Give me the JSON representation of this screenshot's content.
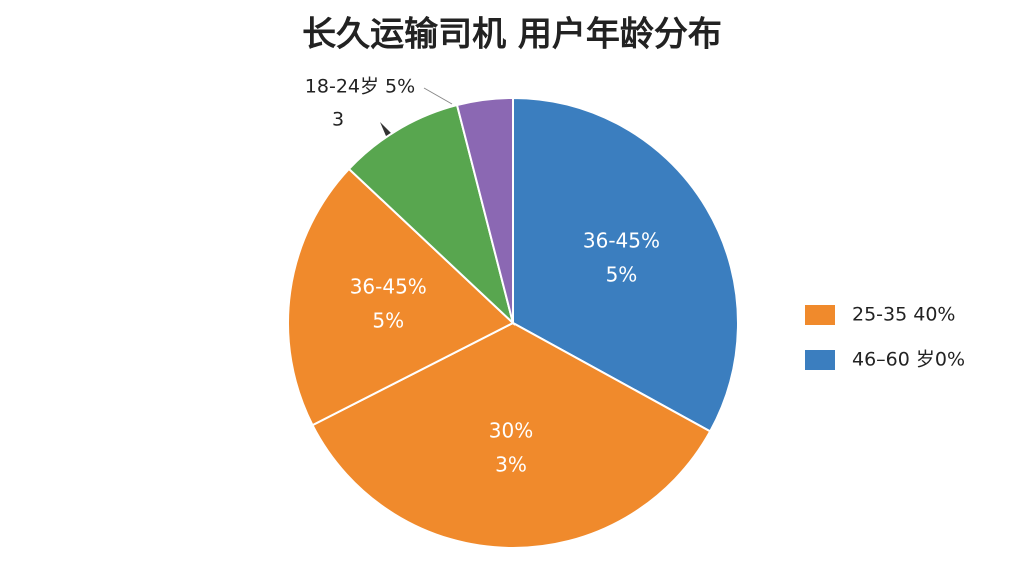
{
  "chart_data": {
    "type": "pie",
    "title": "长久运输司机 用户年龄分布",
    "values": [
      33,
      34.5,
      19.5,
      9,
      4
    ],
    "colors": [
      "#3b7ebf",
      "#f08a2c",
      "#f08a2c",
      "#58a64f",
      "#8b68b3"
    ],
    "slice_labels": [
      [
        "36-45%",
        "5%"
      ],
      [
        "30%",
        "3%"
      ],
      [
        "36-45%",
        "5%"
      ],
      null,
      null
    ],
    "annotation": [
      "18-24岁 5%",
      "3"
    ],
    "legend": [
      {
        "name": "25-35  40%",
        "color": "#f08a2c"
      },
      {
        "name": "46–60 岁0%",
        "color": "#3b7ebf"
      }
    ],
    "legend_position": "right"
  }
}
